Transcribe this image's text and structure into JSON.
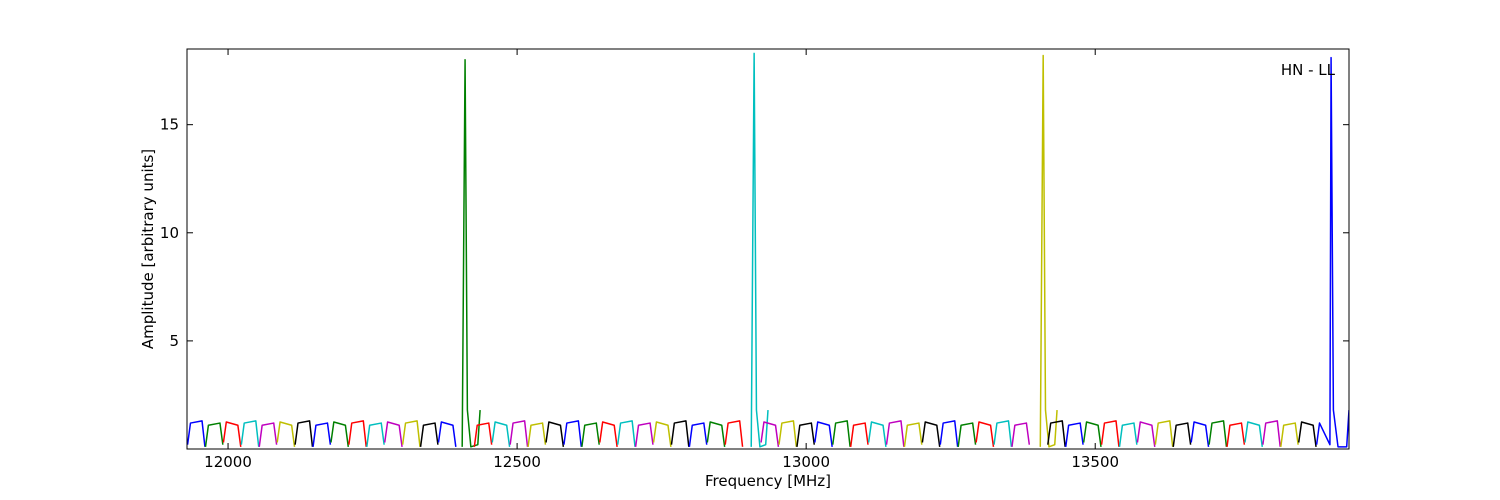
{
  "chart_data": {
    "type": "line",
    "xlabel": "Frequency [MHz]",
    "ylabel": "Amplitude [arbitrary units]",
    "annotation": "HN - LL",
    "xlim": [
      11929,
      13939
    ],
    "ylim": [
      0,
      18.5
    ],
    "xticks": [
      12000,
      12500,
      13000,
      13500
    ],
    "yticks": [
      5,
      10,
      15
    ],
    "grid": false,
    "series": [
      {
        "color": "#0000ff",
        "x": [
          11930,
          11935,
          11955,
          11960
        ],
        "values": [
          0.2,
          1.2,
          1.3,
          0.1
        ]
      },
      {
        "color": "#008000",
        "x": [
          11961,
          11966,
          11986,
          11991
        ],
        "values": [
          0.1,
          1.1,
          1.2,
          0.2
        ]
      },
      {
        "color": "#ff0000",
        "x": [
          11992,
          11997,
          12017,
          12022
        ],
        "values": [
          0.3,
          1.25,
          1.1,
          0.1
        ]
      },
      {
        "color": "#00bfbf",
        "x": [
          12023,
          12028,
          12048,
          12053
        ],
        "values": [
          0.2,
          1.2,
          1.3,
          0.1
        ]
      },
      {
        "color": "#bf00bf",
        "x": [
          12054,
          12059,
          12079,
          12084
        ],
        "values": [
          0.1,
          1.1,
          1.2,
          0.2
        ]
      },
      {
        "color": "#bfbf00",
        "x": [
          12085,
          12090,
          12110,
          12115
        ],
        "values": [
          0.3,
          1.25,
          1.1,
          0.1
        ]
      },
      {
        "color": "#000000",
        "x": [
          12116,
          12121,
          12141,
          12146
        ],
        "values": [
          0.2,
          1.2,
          1.3,
          0.1
        ]
      },
      {
        "color": "#0000ff",
        "x": [
          12147,
          12152,
          12172,
          12177
        ],
        "values": [
          0.1,
          1.1,
          1.2,
          0.2
        ]
      },
      {
        "color": "#008000",
        "x": [
          12178,
          12183,
          12203,
          12208
        ],
        "values": [
          0.3,
          1.25,
          1.1,
          0.1
        ]
      },
      {
        "color": "#ff0000",
        "x": [
          12209,
          12214,
          12234,
          12239
        ],
        "values": [
          0.2,
          1.2,
          1.3,
          0.1
        ]
      },
      {
        "color": "#00bfbf",
        "x": [
          12240,
          12245,
          12265,
          12270
        ],
        "values": [
          0.1,
          1.1,
          1.2,
          0.2
        ]
      },
      {
        "color": "#bf00bf",
        "x": [
          12271,
          12276,
          12296,
          12301
        ],
        "values": [
          0.3,
          1.25,
          1.1,
          0.1
        ]
      },
      {
        "color": "#bfbf00",
        "x": [
          12302,
          12307,
          12327,
          12332
        ],
        "values": [
          0.2,
          1.2,
          1.3,
          0.1
        ]
      },
      {
        "color": "#000000",
        "x": [
          12333,
          12338,
          12358,
          12363
        ],
        "values": [
          0.1,
          1.1,
          1.2,
          0.2
        ]
      },
      {
        "color": "#0000ff",
        "x": [
          12364,
          12369,
          12389,
          12394
        ],
        "values": [
          0.3,
          1.25,
          1.1,
          0.1
        ]
      },
      {
        "color": "#008000",
        "x": [
          12405,
          12410,
          12414,
          12420,
          12432,
          12436
        ],
        "values": [
          0.1,
          18,
          1.8,
          0.1,
          0.2,
          1.8
        ]
      },
      {
        "color": "#ff0000",
        "x": [
          12426,
          12431,
          12451,
          12456
        ],
        "values": [
          0.1,
          1.1,
          1.2,
          0.2
        ]
      },
      {
        "color": "#00bfbf",
        "x": [
          12457,
          12462,
          12482,
          12487
        ],
        "values": [
          0.3,
          1.25,
          1.1,
          0.1
        ]
      },
      {
        "color": "#bf00bf",
        "x": [
          12488,
          12493,
          12513,
          12518
        ],
        "values": [
          0.2,
          1.2,
          1.3,
          0.1
        ]
      },
      {
        "color": "#bfbf00",
        "x": [
          12519,
          12524,
          12544,
          12549
        ],
        "values": [
          0.1,
          1.1,
          1.2,
          0.2
        ]
      },
      {
        "color": "#000000",
        "x": [
          12550,
          12555,
          12575,
          12580
        ],
        "values": [
          0.3,
          1.25,
          1.1,
          0.1
        ]
      },
      {
        "color": "#0000ff",
        "x": [
          12581,
          12586,
          12606,
          12611
        ],
        "values": [
          0.2,
          1.2,
          1.3,
          0.1
        ]
      },
      {
        "color": "#008000",
        "x": [
          12612,
          12617,
          12637,
          12642
        ],
        "values": [
          0.1,
          1.1,
          1.2,
          0.2
        ]
      },
      {
        "color": "#ff0000",
        "x": [
          12643,
          12648,
          12668,
          12673
        ],
        "values": [
          0.3,
          1.25,
          1.1,
          0.1
        ]
      },
      {
        "color": "#00bfbf",
        "x": [
          12674,
          12679,
          12699,
          12704
        ],
        "values": [
          0.2,
          1.2,
          1.3,
          0.1
        ]
      },
      {
        "color": "#bf00bf",
        "x": [
          12705,
          12710,
          12730,
          12735
        ],
        "values": [
          0.1,
          1.1,
          1.2,
          0.2
        ]
      },
      {
        "color": "#bfbf00",
        "x": [
          12736,
          12741,
          12761,
          12766
        ],
        "values": [
          0.3,
          1.25,
          1.1,
          0.1
        ]
      },
      {
        "color": "#000000",
        "x": [
          12767,
          12772,
          12792,
          12797
        ],
        "values": [
          0.2,
          1.2,
          1.3,
          0.1
        ]
      },
      {
        "color": "#0000ff",
        "x": [
          12798,
          12803,
          12823,
          12828
        ],
        "values": [
          0.1,
          1.1,
          1.2,
          0.2
        ]
      },
      {
        "color": "#008000",
        "x": [
          12829,
          12834,
          12854,
          12859
        ],
        "values": [
          0.3,
          1.25,
          1.1,
          0.1
        ]
      },
      {
        "color": "#ff0000",
        "x": [
          12860,
          12865,
          12885,
          12890
        ],
        "values": [
          0.2,
          1.2,
          1.3,
          0.1
        ]
      },
      {
        "color": "#00bfbf",
        "x": [
          12905,
          12910,
          12914,
          12920,
          12930,
          12934
        ],
        "values": [
          0.1,
          18.3,
          1.8,
          0.1,
          0.2,
          1.8
        ]
      },
      {
        "color": "#bf00bf",
        "x": [
          12922,
          12927,
          12947,
          12952
        ],
        "values": [
          0.3,
          1.25,
          1.1,
          0.1
        ]
      },
      {
        "color": "#bfbf00",
        "x": [
          12953,
          12958,
          12978,
          12983
        ],
        "values": [
          0.2,
          1.2,
          1.3,
          0.1
        ]
      },
      {
        "color": "#000000",
        "x": [
          12984,
          12989,
          13009,
          13014
        ],
        "values": [
          0.1,
          1.1,
          1.2,
          0.2
        ]
      },
      {
        "color": "#0000ff",
        "x": [
          13015,
          13020,
          13040,
          13045
        ],
        "values": [
          0.3,
          1.25,
          1.1,
          0.1
        ]
      },
      {
        "color": "#008000",
        "x": [
          13046,
          13051,
          13071,
          13076
        ],
        "values": [
          0.2,
          1.2,
          1.3,
          0.1
        ]
      },
      {
        "color": "#ff0000",
        "x": [
          13077,
          13082,
          13102,
          13107
        ],
        "values": [
          0.1,
          1.1,
          1.2,
          0.2
        ]
      },
      {
        "color": "#00bfbf",
        "x": [
          13108,
          13113,
          13133,
          13138
        ],
        "values": [
          0.3,
          1.25,
          1.1,
          0.1
        ]
      },
      {
        "color": "#bf00bf",
        "x": [
          13139,
          13144,
          13164,
          13169
        ],
        "values": [
          0.2,
          1.2,
          1.3,
          0.1
        ]
      },
      {
        "color": "#bfbf00",
        "x": [
          13170,
          13175,
          13195,
          13200
        ],
        "values": [
          0.1,
          1.1,
          1.2,
          0.2
        ]
      },
      {
        "color": "#000000",
        "x": [
          13201,
          13206,
          13226,
          13231
        ],
        "values": [
          0.3,
          1.25,
          1.1,
          0.1
        ]
      },
      {
        "color": "#0000ff",
        "x": [
          13232,
          13237,
          13257,
          13262
        ],
        "values": [
          0.2,
          1.2,
          1.3,
          0.1
        ]
      },
      {
        "color": "#008000",
        "x": [
          13263,
          13268,
          13288,
          13293
        ],
        "values": [
          0.1,
          1.1,
          1.2,
          0.2
        ]
      },
      {
        "color": "#ff0000",
        "x": [
          13294,
          13299,
          13319,
          13324
        ],
        "values": [
          0.3,
          1.25,
          1.1,
          0.1
        ]
      },
      {
        "color": "#00bfbf",
        "x": [
          13325,
          13330,
          13350,
          13355
        ],
        "values": [
          0.2,
          1.2,
          1.3,
          0.1
        ]
      },
      {
        "color": "#bf00bf",
        "x": [
          13356,
          13361,
          13381,
          13386
        ],
        "values": [
          0.1,
          1.1,
          1.2,
          0.2
        ]
      },
      {
        "color": "#bfbf00",
        "x": [
          13405,
          13410,
          13414,
          13420,
          13430,
          13434
        ],
        "values": [
          0.1,
          18.2,
          1.8,
          0.1,
          0.2,
          1.8
        ]
      },
      {
        "color": "#000000",
        "x": [
          13418,
          13423,
          13443,
          13448
        ],
        "values": [
          0.2,
          1.2,
          1.3,
          0.1
        ]
      },
      {
        "color": "#0000ff",
        "x": [
          13449,
          13454,
          13474,
          13479
        ],
        "values": [
          0.1,
          1.1,
          1.2,
          0.2
        ]
      },
      {
        "color": "#008000",
        "x": [
          13480,
          13485,
          13505,
          13510
        ],
        "values": [
          0.3,
          1.25,
          1.1,
          0.1
        ]
      },
      {
        "color": "#ff0000",
        "x": [
          13511,
          13516,
          13536,
          13541
        ],
        "values": [
          0.2,
          1.2,
          1.3,
          0.1
        ]
      },
      {
        "color": "#00bfbf",
        "x": [
          13542,
          13547,
          13567,
          13572
        ],
        "values": [
          0.1,
          1.1,
          1.2,
          0.2
        ]
      },
      {
        "color": "#bf00bf",
        "x": [
          13573,
          13578,
          13598,
          13603
        ],
        "values": [
          0.3,
          1.25,
          1.1,
          0.1
        ]
      },
      {
        "color": "#bfbf00",
        "x": [
          13604,
          13609,
          13629,
          13634
        ],
        "values": [
          0.2,
          1.2,
          1.3,
          0.1
        ]
      },
      {
        "color": "#000000",
        "x": [
          13635,
          13640,
          13660,
          13665
        ],
        "values": [
          0.1,
          1.1,
          1.2,
          0.2
        ]
      },
      {
        "color": "#0000ff",
        "x": [
          13666,
          13671,
          13691,
          13696
        ],
        "values": [
          0.3,
          1.25,
          1.1,
          0.1
        ]
      },
      {
        "color": "#008000",
        "x": [
          13697,
          13702,
          13722,
          13727
        ],
        "values": [
          0.2,
          1.2,
          1.3,
          0.1
        ]
      },
      {
        "color": "#ff0000",
        "x": [
          13728,
          13733,
          13753,
          13758
        ],
        "values": [
          0.1,
          1.1,
          1.2,
          0.2
        ]
      },
      {
        "color": "#00bfbf",
        "x": [
          13759,
          13764,
          13784,
          13789
        ],
        "values": [
          0.3,
          1.25,
          1.1,
          0.1
        ]
      },
      {
        "color": "#bf00bf",
        "x": [
          13790,
          13795,
          13815,
          13820
        ],
        "values": [
          0.2,
          1.2,
          1.3,
          0.1
        ]
      },
      {
        "color": "#bfbf00",
        "x": [
          13821,
          13826,
          13846,
          13851
        ],
        "values": [
          0.1,
          1.1,
          1.2,
          0.2
        ]
      },
      {
        "color": "#000000",
        "x": [
          13852,
          13857,
          13877,
          13882
        ],
        "values": [
          0.3,
          1.25,
          1.1,
          0.1
        ]
      },
      {
        "color": "#0000ff",
        "x": [
          13883,
          13888,
          13906,
          13908,
          13912,
          13920,
          13935,
          13939
        ],
        "values": [
          0.2,
          1.2,
          0.2,
          18.1,
          1.8,
          0.1,
          0.1,
          1.8
        ]
      }
    ]
  }
}
